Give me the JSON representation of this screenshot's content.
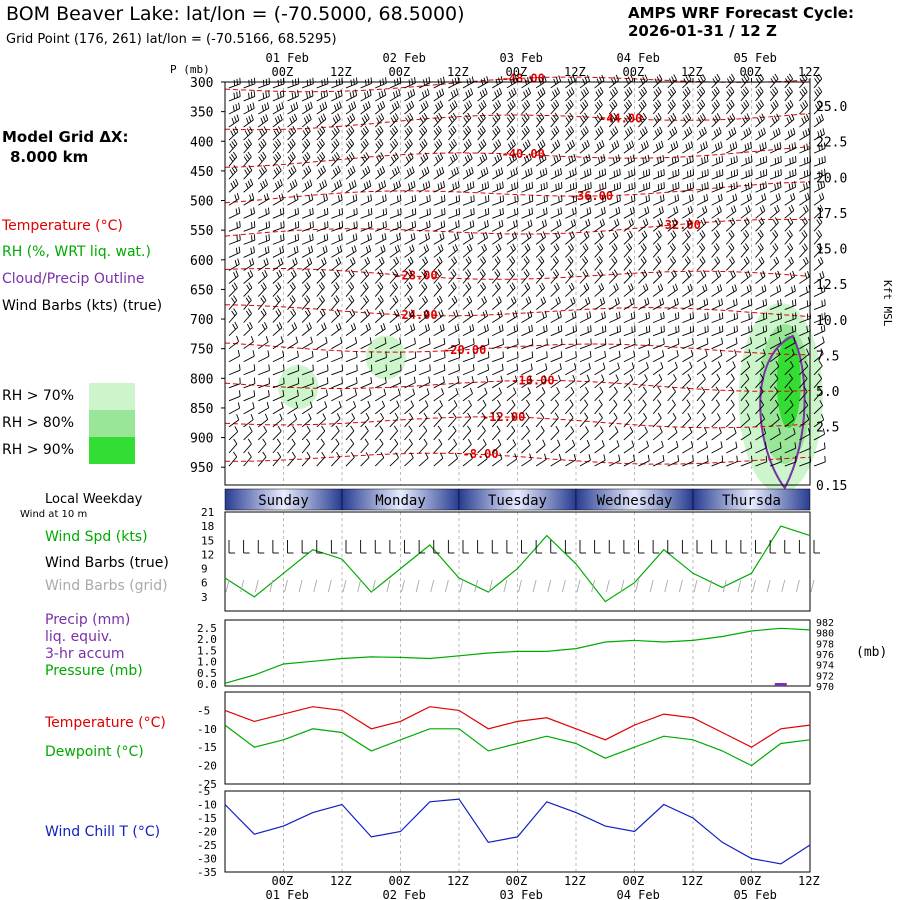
{
  "header": {
    "title": "BOM Beaver Lake:  lat/lon = (-70.5000, 68.5000)",
    "grid_point": "Grid Point (176, 261) lat/lon = (-70.5166, 68.5295)",
    "cycle_label": "AMPS WRF Forecast Cycle:",
    "cycle_value": "2026-01-31 / 12  Z"
  },
  "left_legend": {
    "model_grid": "Model Grid ΔX:",
    "model_grid_value": "8.000 km",
    "temperature": "Temperature (°C)",
    "rh": "RH (%, WRT liq. wat.)",
    "cloud": "Cloud/Precip Outline",
    "wind_barbs": "Wind Barbs (kts) (true)",
    "rh70": "RH > 70%",
    "rh80": "RH > 80%",
    "rh90": "RH > 90%",
    "local_weekday": "Local Weekday",
    "wind_at": "Wind at 10 m",
    "wind_spd": "Wind Spd (kts)",
    "wind_barbs_true": "Wind Barbs (true)",
    "wind_barbs_grid": "Wind Barbs (grid)",
    "precip": "Precip (mm)",
    "liq": "liq. equiv.",
    "accum": "3-hr accum",
    "pressure": "Pressure (mb)",
    "temp2": "Temperature (°C)",
    "dewpoint": "Dewpoint (°C)",
    "windchill": "Wind Chill T (°C)"
  },
  "colors": {
    "temperature": "#e00000",
    "rh": "#00aa00",
    "cloud": "#7b2fa8",
    "wind_chill": "#1020c0",
    "rh70": "#ccf5cc",
    "rh80": "#99e699",
    "rh90": "#33dd33",
    "day_band": "#283c90"
  },
  "top_axis": {
    "p_label": "P (mb)",
    "dates": [
      "01 Feb",
      "02 Feb",
      "03 Feb",
      "04 Feb",
      "05 Feb"
    ],
    "hours": [
      "00Z",
      "12Z",
      "00Z",
      "12Z",
      "00Z",
      "12Z",
      "00Z",
      "12Z",
      "00Z",
      "12Z"
    ]
  },
  "bottom_axis": {
    "hours": [
      "00Z",
      "12Z",
      "00Z",
      "12Z",
      "00Z",
      "12Z",
      "00Z",
      "12Z",
      "00Z",
      "12Z"
    ],
    "dates": [
      "01 Feb",
      "02 Feb",
      "03 Feb",
      "04 Feb",
      "05 Feb"
    ]
  },
  "weekdays": [
    "Sunday",
    "Monday",
    "Tuesday",
    "Wednesday",
    "Thursda"
  ],
  "chart_data": [
    {
      "type": "contour",
      "name": "time-height cross-section",
      "y_axis_pressure_mb": [
        300,
        350,
        400,
        450,
        500,
        550,
        600,
        650,
        700,
        750,
        800,
        850,
        900,
        950
      ],
      "y_axis_right_kft": [
        "25.0",
        "22.5",
        "20.0",
        "17.5",
        "15.0",
        "12.5",
        "10.0",
        "7.5",
        "5.0",
        "2.5",
        "0.15"
      ],
      "y_axis_right_label": "Kft MSL",
      "temperature_contour_labels": [
        "-48.00",
        "-44.00",
        "-40.00",
        "-36.00",
        "-32.00",
        "-28.00",
        "-24.00",
        "-20.00",
        "-16.00",
        "-12.00",
        "-8.00"
      ],
      "temperature_contour_levels_C": [
        -48,
        -44,
        -40,
        -36,
        -32,
        -28,
        -24,
        -20,
        -16,
        -12,
        -8
      ],
      "rh_regions": [
        {
          "level": "RH > 70%",
          "t_hour": 15,
          "p_mb": 815
        },
        {
          "level": "RH > 70%",
          "t_hour": 33,
          "p_mb": 765
        },
        {
          "level": "RH > 90%",
          "t_hour": 114,
          "p_mb": 850
        }
      ]
    },
    {
      "type": "line",
      "name": "wind speed 10 m",
      "x_hours_from_2026-01-31T12Z": [
        0,
        6,
        12,
        18,
        24,
        30,
        36,
        42,
        48,
        54,
        60,
        66,
        72,
        78,
        84,
        90,
        96,
        102,
        108,
        114,
        120
      ],
      "series": [
        {
          "name": "Wind Spd (kts)",
          "values": [
            7,
            3,
            8,
            13,
            11,
            4,
            9,
            14,
            7,
            4,
            9,
            16,
            10,
            2,
            6,
            13,
            8,
            5,
            8,
            18,
            16
          ]
        }
      ],
      "y_ticks": [
        3,
        6,
        9,
        12,
        15,
        18,
        21
      ],
      "ylim": [
        0,
        21
      ]
    },
    {
      "type": "line",
      "name": "precipitation and pressure",
      "x_hours_from_2026-01-31T12Z": [
        0,
        6,
        12,
        18,
        24,
        30,
        36,
        42,
        48,
        54,
        60,
        66,
        72,
        78,
        84,
        90,
        96,
        102,
        108,
        114,
        120
      ],
      "series": [
        {
          "name": "Pressure (mb)",
          "values": [
            970.5,
            972,
            974,
            974.5,
            975,
            975.3,
            975.2,
            975,
            975.5,
            976,
            976.3,
            976.3,
            976.8,
            978,
            978.3,
            978,
            978.3,
            979,
            980,
            980.5,
            980.2
          ]
        },
        {
          "name": "Precip (mm)",
          "values": [
            0,
            0,
            0,
            0,
            0,
            0,
            0,
            0,
            0,
            0,
            0,
            0,
            0,
            0,
            0,
            0,
            0,
            0,
            0,
            0.1,
            0
          ]
        }
      ],
      "y_left_ticks": [
        "2.5",
        "2.0",
        "1.5",
        "1.0",
        "0.5",
        "0.0"
      ],
      "y_right_ticks": [
        "982",
        "980",
        "978",
        "976",
        "974",
        "972",
        "970"
      ],
      "y_right_unit": "(mb)"
    },
    {
      "type": "line",
      "name": "temperature and dewpoint",
      "x_hours_from_2026-01-31T12Z": [
        0,
        6,
        12,
        18,
        24,
        30,
        36,
        42,
        48,
        54,
        60,
        66,
        72,
        78,
        84,
        90,
        96,
        102,
        108,
        114,
        120
      ],
      "series": [
        {
          "name": "Temperature (°C)",
          "values": [
            -5,
            -8,
            -6,
            -4,
            -5,
            -10,
            -8,
            -4,
            -5,
            -10,
            -8,
            -7,
            -10,
            -13,
            -9,
            -6,
            -7,
            -11,
            -15,
            -10,
            -9
          ]
        },
        {
          "name": "Dewpoint (°C)",
          "values": [
            -9,
            -15,
            -13,
            -10,
            -11,
            -16,
            -13,
            -10,
            -10,
            -16,
            -14,
            -12,
            -14,
            -18,
            -15,
            -12,
            -13,
            -16,
            -20,
            -14,
            -13
          ]
        }
      ],
      "y_ticks": [
        -5,
        -10,
        -15,
        -20,
        -25
      ],
      "ylim": [
        -25,
        0
      ]
    },
    {
      "type": "line",
      "name": "wind chill",
      "x_hours_from_2026-01-31T12Z": [
        0,
        6,
        12,
        18,
        24,
        30,
        36,
        42,
        48,
        54,
        60,
        66,
        72,
        78,
        84,
        90,
        96,
        102,
        108,
        114,
        120
      ],
      "series": [
        {
          "name": "Wind Chill T (°C)",
          "values": [
            -10,
            -21,
            -18,
            -13,
            -10,
            -22,
            -20,
            -9,
            -8,
            -24,
            -22,
            -9,
            -13,
            -18,
            -20,
            -10,
            -15,
            -24,
            -30,
            -32,
            -25
          ]
        }
      ],
      "y_ticks": [
        -5,
        -10,
        -15,
        -20,
        -25,
        -30,
        -35
      ],
      "ylim": [
        -35,
        -5
      ]
    }
  ]
}
